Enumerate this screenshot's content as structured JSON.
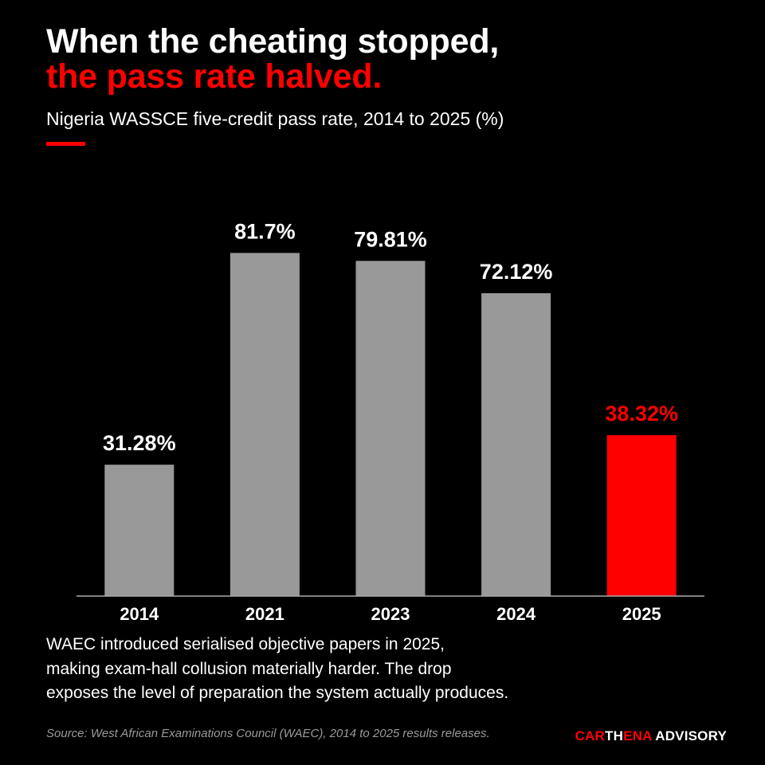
{
  "title": {
    "line1": "When the cheating stopped,",
    "line2": "the pass rate halved."
  },
  "subtitle": "Nigeria WASSCE five-credit pass rate, 2014 to 2025 (%)",
  "note": {
    "lines": [
      "WAEC introduced serialised objective papers in 2025,",
      "making exam-hall collusion materially harder. The drop",
      "exposes the level of preparation the system actually produces."
    ]
  },
  "source": "Source: West African Examinations Council (WAEC), 2014 to 2025 results releases.",
  "brand": {
    "part1": "CAR",
    "part2": "TH",
    "part3": "ENA",
    "part4": " ADVISORY"
  },
  "colors": {
    "background": "#000000",
    "bar": "#999999",
    "highlight": "#ff0000",
    "text": "#ffffff",
    "axis": "#aaaaaa"
  },
  "chart_data": {
    "type": "bar",
    "categories": [
      "2014",
      "2021",
      "2023",
      "2024",
      "2025"
    ],
    "values": [
      31.28,
      81.7,
      79.81,
      72.12,
      38.32
    ],
    "value_labels": [
      "31.28%",
      "81.7%",
      "79.81%",
      "72.12%",
      "38.32%"
    ],
    "highlight_index": 4,
    "ylim": [
      0,
      100
    ],
    "grid": false,
    "title": "When the cheating stopped, the pass rate halved.",
    "xlabel": "",
    "ylabel": ""
  }
}
